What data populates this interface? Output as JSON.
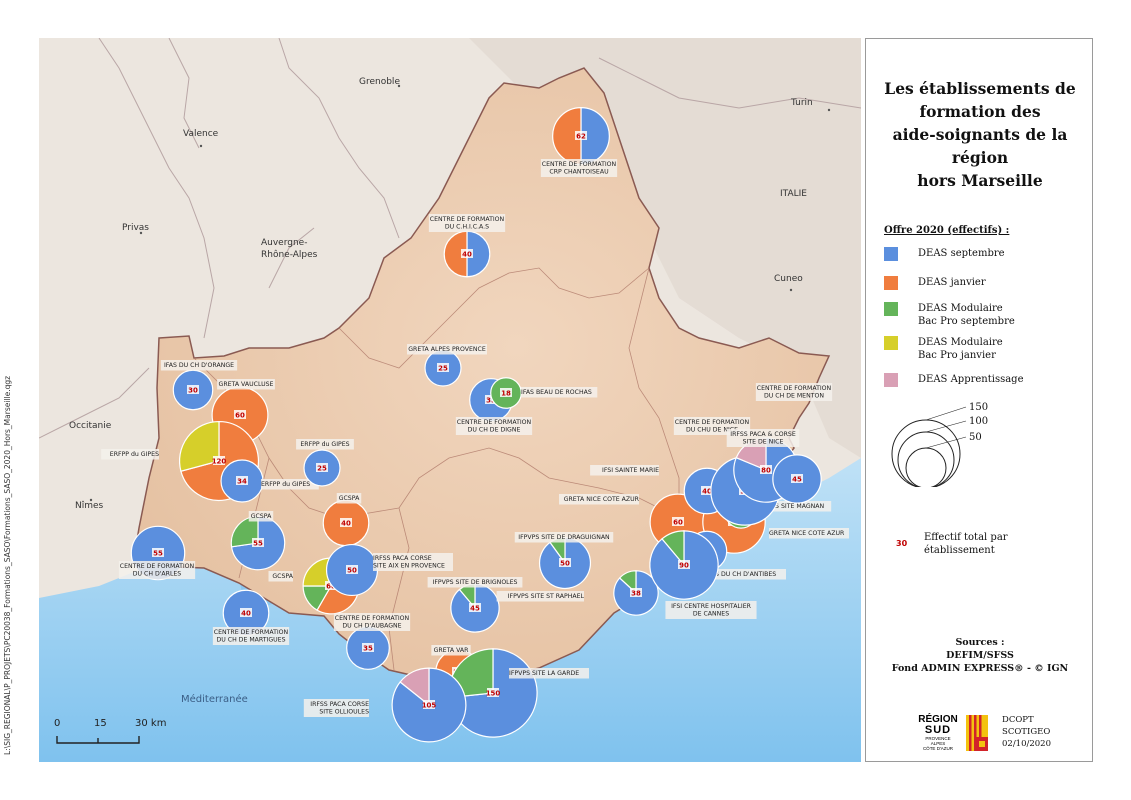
{
  "map": {
    "title": "Les établissements de formation des aide-soignants de la région hors Marseille",
    "title_lines": [
      "Les établissements de",
      "formation des",
      "aide-soignants de la région",
      "hors Marseille"
    ],
    "path_text": "L:\\SIG_REGIONAL\\P_PROJETS\\PC20038_Formations_SASO\\Formations_SASO_2020_Hors_Marseille.qgz",
    "places": [
      {
        "name": "Grenoble"
      },
      {
        "name": "Turin"
      },
      {
        "name": "Valence"
      },
      {
        "name": "ITALIE"
      },
      {
        "name": "Privas"
      },
      {
        "name": "Auvergne-"
      },
      {
        "name": "Rhône-Alpes"
      },
      {
        "name": "Cuneo"
      },
      {
        "name": "Occitanie"
      },
      {
        "name": "Nîmes"
      },
      {
        "name": "Méditerranée"
      }
    ],
    "scalebar": {
      "ticks": [
        "0",
        "15",
        "30 km"
      ]
    }
  },
  "legend": {
    "title": "Offre 2020 (effectifs) :",
    "categories": [
      {
        "label": "DEAS septembre",
        "color": "#5b8fde"
      },
      {
        "label": "DEAS janvier",
        "color": "#f07d3e"
      },
      {
        "label": "DEAS Modulaire Bac Pro septembre",
        "lines": [
          "DEAS Modulaire",
          "Bac Pro septembre"
        ],
        "color": "#64b45a"
      },
      {
        "label": "DEAS Modulaire Bac Pro janvier",
        "lines": [
          "DEAS Modulaire",
          "Bac Pro janvier"
        ],
        "color": "#d6cf2a"
      },
      {
        "label": "DEAS Apprentissage",
        "color": "#d9a0b5"
      }
    ],
    "size_legend": [
      "150",
      "100",
      "50"
    ],
    "value_example": "30",
    "value_label_lines": [
      "Effectif total par",
      "établissement"
    ],
    "sources_lines": [
      "Sources :",
      "DEFIM/SFSS",
      "Fond ADMIN EXPRESS® - © IGN"
    ],
    "logo_lines": [
      "RÉGION",
      "SUD"
    ],
    "logo_small": [
      "PROVENCE",
      "ALPES",
      "CÔTE D'AZUR"
    ],
    "credit_lines": [
      "DCOPT",
      "SCOTIGEO",
      "02/10/2020"
    ]
  },
  "establishments": [
    {
      "name": "CENTRE DE FORMATION CRP CHANTOISEAU",
      "label_lines": [
        "CENTRE DE FORMATION",
        "CRP CHANTOISEAU"
      ],
      "total": 62,
      "parts": [
        31,
        31,
        0,
        0,
        0
      ]
    },
    {
      "name": "CENTRE DE FORMATION DU C.H.I.C.A.S",
      "label_lines": [
        "CENTRE DE FORMATION",
        "DU C.H.I.C.A.S"
      ],
      "total": 40,
      "parts": [
        20,
        20,
        0,
        0,
        0
      ]
    },
    {
      "name": "GRETA ALPES PROVENCE",
      "label_lines": [
        "GRETA ALPES PROVENCE"
      ],
      "total": 25,
      "parts": [
        25,
        0,
        0,
        0,
        0
      ]
    },
    {
      "name": "CENTRE DE FORMATION DU CH DE DIGNE",
      "label_lines": [
        "CENTRE DE FORMATION",
        "DU CH DE DIGNE"
      ],
      "total": 35,
      "parts": [
        35,
        0,
        0,
        0,
        0
      ]
    },
    {
      "name": "IFAS BEAU DE ROCHAS",
      "label_lines": [
        "IFAS BEAU DE ROCHAS"
      ],
      "total": 18,
      "parts": [
        0,
        0,
        18,
        0,
        0
      ]
    },
    {
      "name": "IFAS DU CH D'ORANGE",
      "label_lines": [
        "IFAS DU CH D'ORANGE"
      ],
      "total": 30,
      "parts": [
        30,
        0,
        0,
        0,
        0
      ]
    },
    {
      "name": "GRETA VAUCLUSE",
      "label_lines": [
        "GRETA VAUCLUSE"
      ],
      "total": 60,
      "parts": [
        0,
        60,
        0,
        0,
        0
      ]
    },
    {
      "name": "ERFPP du GIPES",
      "label_lines": [
        "ERFPP du GIPES"
      ],
      "total": 120,
      "parts": [
        0,
        85,
        0,
        35,
        0
      ]
    },
    {
      "name": "ERFPP du GIPES",
      "label_lines": [
        "ERFPP du GIPES"
      ],
      "total": 34,
      "parts": [
        34,
        0,
        0,
        0,
        0
      ]
    },
    {
      "name": "ERFPP du GIPES",
      "label_lines": [
        "ERFPP du GIPES"
      ],
      "total": 25,
      "parts": [
        25,
        0,
        0,
        0,
        0
      ]
    },
    {
      "name": "CENTRE DE FORMATION DU CH D'ARLES",
      "label_lines": [
        "CENTRE DE FORMATION",
        "DU CH D'ARLES"
      ],
      "total": 55,
      "parts": [
        55,
        0,
        0,
        0,
        0
      ]
    },
    {
      "name": "GCSPA",
      "label_lines": [
        "GCSPA"
      ],
      "total": 55,
      "parts": [
        40,
        0,
        15,
        0,
        0
      ]
    },
    {
      "name": "GCSPA",
      "label_lines": [
        "GCSPA"
      ],
      "total": 40,
      "parts": [
        0,
        40,
        0,
        0,
        0
      ]
    },
    {
      "name": "GCSPA",
      "label_lines": [
        "GCSPA"
      ],
      "total": 60,
      "parts": [
        0,
        35,
        10,
        15,
        0
      ]
    },
    {
      "name": "IRFSS PACA CORSE SITE AIX EN PROVENCE",
      "label_lines": [
        "IRFSS PACA CORSE",
        "SITE AIX EN PROVENCE"
      ],
      "total": 50,
      "parts": [
        50,
        0,
        0,
        0,
        0
      ]
    },
    {
      "name": "CENTRE DE FORMATION DU CH DE MARTIGUES",
      "label_lines": [
        "CENTRE DE FORMATION",
        "DU CH DE MARTIGUES"
      ],
      "total": 40,
      "parts": [
        40,
        0,
        0,
        0,
        0
      ]
    },
    {
      "name": "CENTRE DE FORMATION DU CH D'AUBAGNE",
      "label_lines": [
        "CENTRE DE FORMATION",
        "DU CH D'AUBAGNE"
      ],
      "total": 35,
      "parts": [
        35,
        0,
        0,
        0,
        0
      ]
    },
    {
      "name": "IFPVPS SITE DE BRIGNOLES",
      "label_lines": [
        "IFPVPS SITE DE BRIGNOLES"
      ],
      "total": 45,
      "parts": [
        40,
        0,
        5,
        0,
        0
      ]
    },
    {
      "name": "IFPVPS SITE DE DRAGUIGNAN",
      "label_lines": [
        "IFPVPS SITE DE DRAGUIGNAN"
      ],
      "total": 50,
      "parts": [
        45,
        0,
        5,
        0,
        0
      ]
    },
    {
      "name": "IFPVPS SITE ST RAPHAEL",
      "label_lines": [
        "IFPVPS SITE ST RAPHAEL"
      ],
      "total": 38,
      "parts": [
        33,
        0,
        5,
        0,
        0
      ]
    },
    {
      "name": "GRETA VAR",
      "label_lines": [
        "GRETA VAR"
      ],
      "total": 38,
      "parts": [
        0,
        38,
        0,
        0,
        0
      ]
    },
    {
      "name": "IFPVPS SITE LA GARDE",
      "label_lines": [
        "IFPVPS SITE LA GARDE"
      ],
      "total": 150,
      "parts": [
        110,
        0,
        40,
        0,
        0
      ]
    },
    {
      "name": "IRFSS PACA CORSE SITE OLLIOULES",
      "label_lines": [
        "IRFSS PACA CORSE",
        "SITE OLLIOULES"
      ],
      "total": 105,
      "parts": [
        90,
        0,
        0,
        0,
        15
      ]
    },
    {
      "name": "GRETA NICE COTE AZUR",
      "label_lines": [
        "GRETA NICE COTE AZUR"
      ],
      "total": 60,
      "parts": [
        0,
        60,
        0,
        0,
        0
      ]
    },
    {
      "name": "GRETA NICE COTE AZUR",
      "label_lines": [
        "GRETA NICE COTE AZUR"
      ],
      "total": 75,
      "parts": [
        0,
        75,
        0,
        0,
        0
      ]
    },
    {
      "name": "IFAS SITE MAGNAN",
      "label_lines": [
        "IFAS SITE MAGNAN"
      ],
      "total": 20,
      "parts": [
        0,
        0,
        20,
        0,
        0
      ]
    },
    {
      "name": "IFSI SAINTE MARIE",
      "label_lines": [
        "IFSI SAINTE MARIE"
      ],
      "total": 40,
      "parts": [
        40,
        0,
        0,
        0,
        0
      ]
    },
    {
      "name": "CENTRE DE FORMATION DU CHU DE NICE",
      "label_lines": [
        "CENTRE DE FORMATION",
        "DU CHU DE NICE"
      ],
      "total": 90,
      "parts": [
        90,
        0,
        0,
        0,
        0
      ]
    },
    {
      "name": "IRFSS PACA & CORSE SITE DE NICE",
      "label_lines": [
        "IRFSS PACA & CORSE",
        "SITE DE NICE"
      ],
      "total": 80,
      "parts": [
        65,
        0,
        0,
        0,
        15
      ]
    },
    {
      "name": "CENTRE DE FORMATION DU CH DE MENTON",
      "label_lines": [
        "CENTRE DE FORMATION",
        "DU CH DE MENTON"
      ],
      "total": 45,
      "parts": [
        45,
        0,
        0,
        0,
        0
      ]
    },
    {
      "name": "IFAS DU CH D'ANTIBES",
      "label_lines": [
        "IFAS DU CH D'ANTIBES"
      ],
      "total": 30,
      "parts": [
        30,
        0,
        0,
        0,
        0
      ]
    },
    {
      "name": "IFSI CENTRE HOSPITALIER DE CANNES",
      "label_lines": [
        "IFSI CENTRE HOSPITALIER",
        "DE CANNES"
      ],
      "total": 90,
      "parts": [
        80,
        0,
        10,
        0,
        0
      ]
    }
  ]
}
